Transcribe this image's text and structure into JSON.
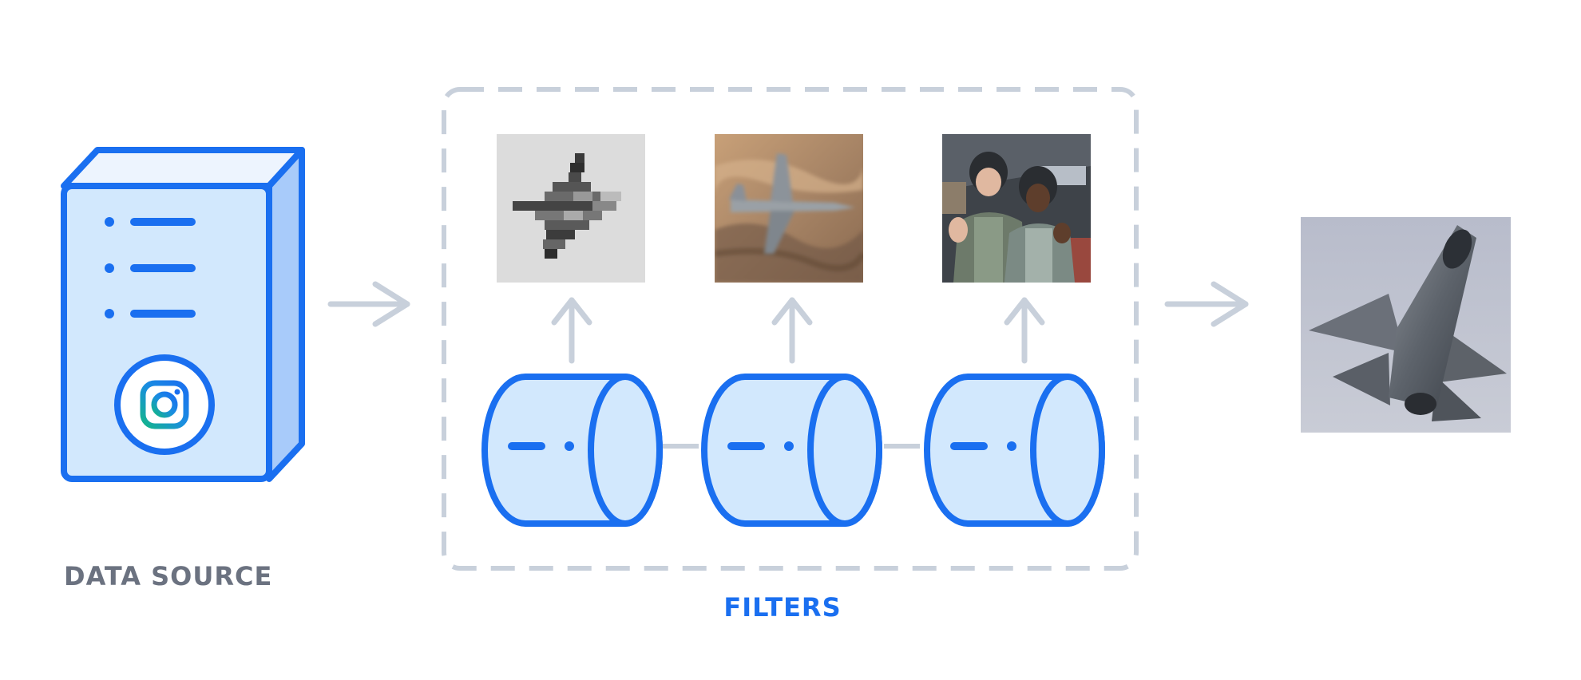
{
  "labels": {
    "data_source": "DATA SOURCE",
    "filters": "FILTERS"
  },
  "icons": {
    "server": "server-icon",
    "instagram": "instagram-icon",
    "filter": "filter-cylinder-icon",
    "arrow_right": "arrow-right-icon",
    "arrow_up": "arrow-up-icon"
  },
  "images": {
    "low_resolution_jet": "pixelated grayscale fighter jet",
    "blurry_jet": "motion-blurred fighter jet over desert canyon",
    "pilots": "two pilots in flight suits in a hangar",
    "output_jet": "fighter jet climbing against grey sky"
  },
  "colors": {
    "primary": "#1a6ff0",
    "light_fill": "#d2e8fd",
    "side_fill": "#a8cbfa",
    "dash": "#c8d0db",
    "muted_text": "#6b7280"
  }
}
